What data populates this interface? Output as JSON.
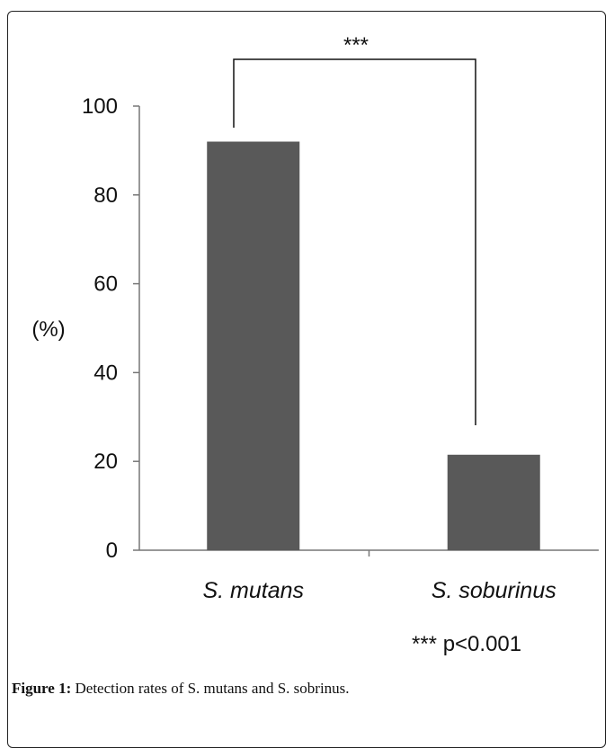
{
  "chart_data": {
    "type": "bar",
    "categories": [
      "S. mutans",
      "S. soburinus"
    ],
    "values": [
      92,
      21.5
    ],
    "ylabel": "(%)",
    "ylim": [
      0,
      100
    ],
    "yticks": [
      0,
      20,
      40,
      60,
      80,
      100
    ],
    "bar_color": "#595959",
    "grid": false,
    "significance": {
      "label": "***",
      "between": [
        "S. mutans",
        "S. soburinus"
      ]
    },
    "note": "*** p<0.001"
  },
  "caption": {
    "label": "Figure 1:",
    "text": "Detection rates of S. mutans and S. sobrinus."
  }
}
